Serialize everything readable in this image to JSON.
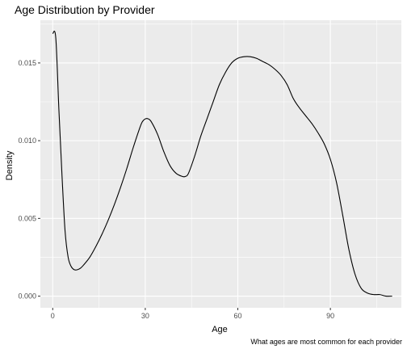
{
  "chart_data": {
    "type": "line",
    "title": "Age Distribution by Provider",
    "xlabel": "Age",
    "ylabel": "Density",
    "caption": "What ages are most common for each provider",
    "xlim": [
      -4,
      113
    ],
    "ylim": [
      -0.00075,
      0.01775
    ],
    "x_ticks": [
      0,
      30,
      60,
      90
    ],
    "x_tick_labels": [
      "0",
      "30",
      "60",
      "90"
    ],
    "y_ticks": [
      0.0,
      0.005,
      0.01,
      0.015
    ],
    "y_tick_labels": [
      "0.000",
      "0.005",
      "0.010",
      "0.015"
    ],
    "grid": true,
    "legend": "none",
    "series": [
      {
        "x": [
          0,
          1,
          2,
          3,
          4,
          5,
          6,
          7,
          8,
          9,
          10,
          12,
          14,
          16,
          18,
          20,
          22,
          24,
          26,
          28,
          29,
          30,
          31,
          32,
          34,
          36,
          38,
          40,
          42,
          43,
          44,
          46,
          48,
          50,
          52,
          54,
          56,
          58,
          60,
          62,
          64,
          66,
          68,
          70,
          72,
          74,
          76,
          78,
          80,
          82,
          84,
          86,
          88,
          90,
          92,
          94,
          96,
          98,
          100,
          102,
          104,
          106,
          108,
          110
        ],
        "values": [
          0.0169,
          0.0166,
          0.012,
          0.0078,
          0.0042,
          0.0025,
          0.0019,
          0.0017,
          0.0017,
          0.0018,
          0.002,
          0.0025,
          0.0032,
          0.004,
          0.0049,
          0.0059,
          0.007,
          0.0082,
          0.0095,
          0.0107,
          0.0112,
          0.0114,
          0.0114,
          0.0112,
          0.0104,
          0.0093,
          0.0084,
          0.0079,
          0.0077,
          0.0077,
          0.0079,
          0.009,
          0.0103,
          0.0114,
          0.0125,
          0.0136,
          0.0144,
          0.015,
          0.0153,
          0.0154,
          0.0154,
          0.0153,
          0.0151,
          0.0149,
          0.0146,
          0.0142,
          0.0136,
          0.0127,
          0.0121,
          0.0116,
          0.0111,
          0.0105,
          0.0098,
          0.0088,
          0.0073,
          0.0052,
          0.003,
          0.0014,
          0.0005,
          0.0002,
          0.0001,
          0.0001,
          0.0,
          0.0
        ],
        "color": "#000000"
      }
    ],
    "colors": {
      "panel_background": "#ebebeb",
      "grid_major": "#ffffff",
      "axis_text": "#4d4d4d",
      "line": "#000000"
    }
  }
}
